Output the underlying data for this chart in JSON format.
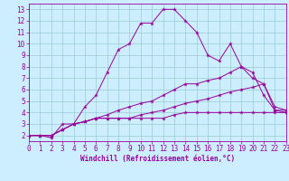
{
  "xlabel": "Windchill (Refroidissement éolien,°C)",
  "xlim": [
    0,
    23
  ],
  "ylim": [
    1.5,
    13.5
  ],
  "xticks": [
    0,
    1,
    2,
    3,
    4,
    5,
    6,
    7,
    8,
    9,
    10,
    11,
    12,
    13,
    14,
    15,
    16,
    17,
    18,
    19,
    20,
    21,
    22,
    23
  ],
  "yticks": [
    2,
    3,
    4,
    5,
    6,
    7,
    8,
    9,
    10,
    11,
    12,
    13
  ],
  "bg_color": "#cceeff",
  "line_color": "#990099",
  "grid_color": "#99cccc",
  "line1_x": [
    0,
    1,
    2,
    3,
    4,
    5,
    6,
    7,
    8,
    9,
    10,
    11,
    12,
    13,
    14,
    15,
    16,
    17,
    18,
    19,
    20,
    21,
    22,
    23
  ],
  "line1_y": [
    2.0,
    2.0,
    1.8,
    3.0,
    3.0,
    4.5,
    5.5,
    7.5,
    9.5,
    10.0,
    11.8,
    11.8,
    13.0,
    13.0,
    12.0,
    11.0,
    9.0,
    8.5,
    10.0,
    8.0,
    7.5,
    5.5,
    4.2,
    4.2
  ],
  "line2_x": [
    0,
    2,
    3,
    4,
    5,
    6,
    7,
    8,
    9,
    10,
    11,
    12,
    13,
    14,
    15,
    16,
    17,
    18,
    19,
    20,
    21,
    22,
    23
  ],
  "line2_y": [
    2.0,
    2.0,
    2.5,
    3.0,
    3.2,
    3.5,
    3.5,
    3.5,
    3.5,
    3.5,
    3.5,
    3.5,
    3.8,
    4.0,
    4.0,
    4.0,
    4.0,
    4.0,
    4.0,
    4.0,
    4.0,
    4.0,
    4.0
  ],
  "line3_x": [
    0,
    1,
    2,
    3,
    4,
    5,
    6,
    7,
    8,
    9,
    10,
    11,
    12,
    13,
    14,
    15,
    16,
    17,
    18,
    19,
    20,
    21,
    22,
    23
  ],
  "line3_y": [
    2.0,
    2.0,
    2.0,
    2.5,
    3.0,
    3.2,
    3.5,
    3.8,
    4.2,
    4.5,
    4.8,
    5.0,
    5.5,
    6.0,
    6.5,
    6.5,
    6.8,
    7.0,
    7.5,
    8.0,
    7.0,
    6.5,
    4.5,
    4.2
  ],
  "line4_x": [
    0,
    1,
    2,
    3,
    4,
    5,
    6,
    7,
    8,
    9,
    10,
    11,
    12,
    13,
    14,
    15,
    16,
    17,
    18,
    19,
    20,
    21,
    22,
    23
  ],
  "line4_y": [
    2.0,
    2.0,
    2.0,
    2.5,
    3.0,
    3.2,
    3.5,
    3.5,
    3.5,
    3.5,
    3.8,
    4.0,
    4.2,
    4.5,
    4.8,
    5.0,
    5.2,
    5.5,
    5.8,
    6.0,
    6.2,
    6.5,
    4.2,
    4.0
  ],
  "tick_fontsize": 5.5,
  "xlabel_fontsize": 5.5
}
